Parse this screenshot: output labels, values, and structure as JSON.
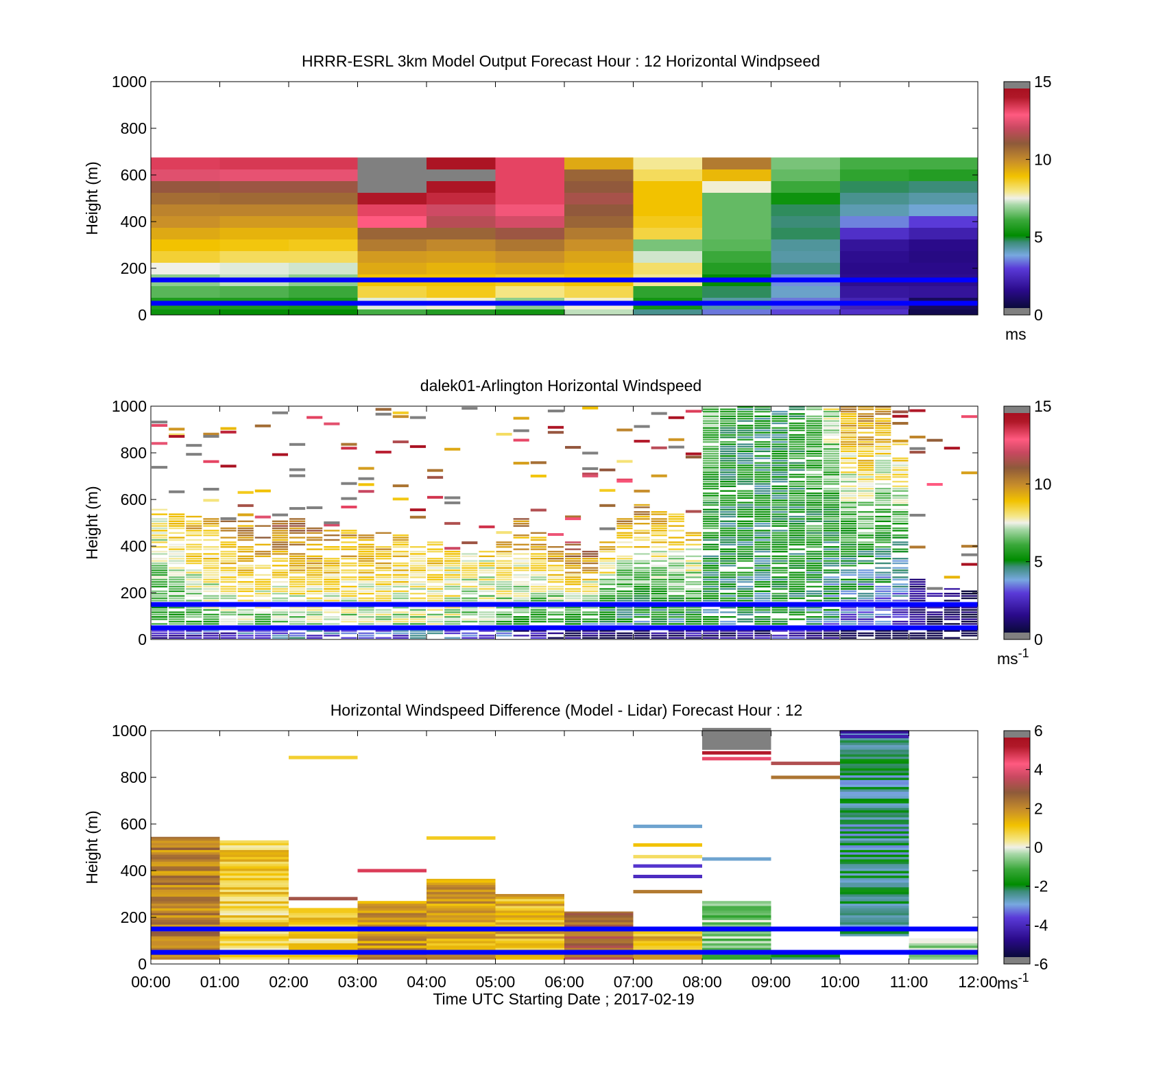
{
  "figure": {
    "xlabel": "Time UTC  Starting Date ; 2017-02-19"
  },
  "chart_data": [
    {
      "type": "heatmap",
      "title": "HRRR-ESRL 3km Model Output   Forecast Hour : 12 Horizontal Windpseed",
      "ylabel": "Height (m)",
      "ylim": [
        0,
        1000
      ],
      "xlim": [
        0,
        12
      ],
      "yticks": [
        0,
        200,
        400,
        600,
        800,
        1000
      ],
      "xticks": [
        0,
        1,
        2,
        3,
        4,
        5,
        6,
        7,
        8,
        9,
        10,
        11,
        12
      ],
      "colorbar": {
        "ticks": [
          0,
          5,
          10,
          15
        ],
        "clim": [
          0,
          15
        ],
        "unit_text": "ms",
        "unit_sup": ""
      },
      "reference_lines_m": [
        150,
        50
      ],
      "cell_height_m": 50,
      "columns": [
        {
          "x": 0,
          "values": [
            5.2,
            5.5,
            6.3,
            6.8,
            7.5,
            8.6,
            9.0,
            9.5,
            10.0,
            10.3,
            10.8,
            11.4,
            12.7,
            13.7
          ]
        },
        {
          "x": 1,
          "values": [
            5.0,
            5.5,
            6.2,
            7.2,
            7.4,
            8.3,
            8.9,
            9.3,
            9.8,
            10.3,
            10.9,
            11.5,
            12.8,
            13.8
          ]
        },
        {
          "x": 2,
          "values": [
            5.0,
            5.4,
            6.0,
            6.8,
            7.3,
            8.3,
            8.8,
            9.3,
            9.8,
            10.3,
            10.9,
            11.5,
            12.8,
            13.8
          ]
        },
        {
          "x": 3,
          "values": [
            6.1,
            7.4,
            8.5,
            9.0,
            9.5,
            9.8,
            10.5,
            11.0,
            13.2,
            13.6,
            14.5,
            15.1,
            15.1,
            15.1
          ]
        },
        {
          "x": 4,
          "values": [
            5.6,
            7.6,
            8.8,
            9.0,
            9.3,
            9.7,
            10.2,
            11.0,
            12.0,
            12.4,
            14.1,
            14.6,
            15.1,
            14.7
          ]
        },
        {
          "x": 5,
          "values": [
            5.3,
            6.8,
            8.0,
            8.8,
            9.5,
            10.0,
            10.6,
            11.5,
            12.5,
            13.0,
            13.6,
            13.6,
            13.6,
            13.6
          ]
        },
        {
          "x": 6,
          "values": [
            7.2,
            7.6,
            8.4,
            9.0,
            9.3,
            9.6,
            10.0,
            10.5,
            11.0,
            11.3,
            11.7,
            11.3,
            11.0,
            9.5
          ]
        },
        {
          "x": 7,
          "values": [
            4.3,
            5.3,
            5.8,
            7.9,
            8.2,
            7.3,
            6.6,
            8.5,
            8.8,
            9.0,
            9.0,
            9.0,
            8.3,
            7.9
          ]
        },
        {
          "x": 8,
          "values": [
            3.2,
            4.1,
            4.6,
            5.0,
            5.6,
            6.0,
            6.3,
            6.4,
            6.4,
            6.4,
            6.4,
            7.6,
            9.2,
            10.5
          ]
        },
        {
          "x": 9,
          "values": [
            2.8,
            3.2,
            3.8,
            3.4,
            4.4,
            4.1,
            4.2,
            4.6,
            4.5,
            4.6,
            5.2,
            6.0,
            6.4,
            6.6
          ]
        },
        {
          "x": 10,
          "values": [
            2.4,
            2.0,
            1.6,
            1.3,
            1.2,
            1.3,
            1.5,
            2.4,
            3.3,
            4.0,
            4.3,
            4.6,
            5.8,
            6.1
          ]
        },
        {
          "x": 11,
          "values": [
            0.3,
            0.5,
            1.5,
            1.3,
            1.2,
            1.1,
            1.2,
            1.9,
            2.7,
            3.7,
            4.1,
            4.5,
            5.6,
            6.1
          ]
        }
      ]
    },
    {
      "type": "heatmap",
      "title": "dalek01-Arlington  Horizontal Windspeed",
      "ylabel": "Height (m)",
      "ylim": [
        0,
        1000
      ],
      "xlim": [
        0,
        12
      ],
      "yticks": [
        0,
        200,
        400,
        600,
        800,
        1000
      ],
      "xticks": [
        0,
        1,
        2,
        3,
        4,
        5,
        6,
        7,
        8,
        9,
        10,
        11,
        12
      ],
      "colorbar": {
        "ticks": [
          0,
          5,
          10,
          15
        ],
        "clim": [
          0,
          15
        ],
        "unit_text": "ms",
        "unit_sup": "-1"
      },
      "reference_lines_m": [
        150,
        50
      ],
      "regions": [
        {
          "x0": 0.0,
          "x1": 0.25,
          "top": 560,
          "base": 5.0,
          "upper": 8.5
        },
        {
          "x0": 0.25,
          "x1": 0.5,
          "top": 540,
          "base": 5.2,
          "upper": 9.0
        },
        {
          "x0": 0.5,
          "x1": 0.75,
          "top": 530,
          "base": 5.5,
          "upper": 9.5
        },
        {
          "x0": 0.75,
          "x1": 1.0,
          "top": 520,
          "base": 6.0,
          "upper": 9.5
        },
        {
          "x0": 1.0,
          "x1": 1.25,
          "top": 510,
          "base": 6.0,
          "upper": 10.0
        },
        {
          "x0": 1.25,
          "x1": 1.5,
          "top": 520,
          "base": 6.2,
          "upper": 10.5
        },
        {
          "x0": 1.5,
          "x1": 1.75,
          "top": 500,
          "base": 6.0,
          "upper": 11.0
        },
        {
          "x0": 1.75,
          "x1": 2.0,
          "top": 510,
          "base": 6.0,
          "upper": 11.0
        },
        {
          "x0": 2.0,
          "x1": 2.25,
          "top": 520,
          "base": 6.2,
          "upper": 11.0
        },
        {
          "x0": 2.25,
          "x1": 2.5,
          "top": 500,
          "base": 6.0,
          "upper": 11.0
        },
        {
          "x0": 2.5,
          "x1": 2.75,
          "top": 480,
          "base": 6.2,
          "upper": 10.5
        },
        {
          "x0": 2.75,
          "x1": 3.0,
          "top": 480,
          "base": 6.3,
          "upper": 10.0
        },
        {
          "x0": 3.0,
          "x1": 3.25,
          "top": 500,
          "base": 6.5,
          "upper": 10.0
        },
        {
          "x0": 3.25,
          "x1": 3.5,
          "top": 460,
          "base": 6.6,
          "upper": 10.0
        },
        {
          "x0": 3.5,
          "x1": 3.75,
          "top": 450,
          "base": 6.6,
          "upper": 9.5
        },
        {
          "x0": 3.75,
          "x1": 4.0,
          "top": 400,
          "base": 6.7,
          "upper": 9.0
        },
        {
          "x0": 4.0,
          "x1": 4.25,
          "top": 420,
          "base": 6.8,
          "upper": 9.0
        },
        {
          "x0": 4.25,
          "x1": 4.5,
          "top": 380,
          "base": 6.9,
          "upper": 8.5
        },
        {
          "x0": 4.5,
          "x1": 4.75,
          "top": 380,
          "base": 6.6,
          "upper": 8.0
        },
        {
          "x0": 4.75,
          "x1": 5.0,
          "top": 390,
          "base": 6.0,
          "upper": 8.5
        },
        {
          "x0": 5.0,
          "x1": 5.25,
          "top": 420,
          "base": 5.5,
          "upper": 9.5
        },
        {
          "x0": 5.25,
          "x1": 5.5,
          "top": 520,
          "base": 5.0,
          "upper": 10.5
        },
        {
          "x0": 5.5,
          "x1": 5.75,
          "top": 460,
          "base": 4.5,
          "upper": 10.0
        },
        {
          "x0": 5.75,
          "x1": 6.0,
          "top": 400,
          "base": 4.0,
          "upper": 10.5
        },
        {
          "x0": 6.0,
          "x1": 6.25,
          "top": 420,
          "base": 3.5,
          "upper": 12.0
        },
        {
          "x0": 6.25,
          "x1": 6.5,
          "top": 380,
          "base": 3.2,
          "upper": 11.0
        },
        {
          "x0": 6.5,
          "x1": 6.75,
          "top": 420,
          "base": 3.2,
          "upper": 10.0
        },
        {
          "x0": 6.75,
          "x1": 7.0,
          "top": 520,
          "base": 3.2,
          "upper": 10.0
        },
        {
          "x0": 7.0,
          "x1": 7.25,
          "top": 580,
          "base": 3.5,
          "upper": 10.5
        },
        {
          "x0": 7.25,
          "x1": 7.5,
          "top": 560,
          "base": 3.8,
          "upper": 10.0
        },
        {
          "x0": 7.5,
          "x1": 7.75,
          "top": 540,
          "base": 4.0,
          "upper": 9.5
        },
        {
          "x0": 7.75,
          "x1": 8.0,
          "top": 460,
          "base": 4.0,
          "upper": 9.0
        },
        {
          "x0": 8.0,
          "x1": 8.25,
          "top": 1000,
          "base": 4.5,
          "upper": 6.5
        },
        {
          "x0": 8.25,
          "x1": 8.5,
          "top": 1000,
          "base": 4.5,
          "upper": 5.5
        },
        {
          "x0": 8.5,
          "x1": 8.75,
          "top": 1000,
          "base": 4.8,
          "upper": 5.2
        },
        {
          "x0": 8.75,
          "x1": 9.0,
          "top": 1000,
          "base": 4.6,
          "upper": 5.0
        },
        {
          "x0": 9.0,
          "x1": 9.25,
          "top": 980,
          "base": 5.5,
          "upper": 5.0
        },
        {
          "x0": 9.25,
          "x1": 9.5,
          "top": 1000,
          "base": 5.0,
          "upper": 5.5
        },
        {
          "x0": 9.5,
          "x1": 9.75,
          "top": 1000,
          "base": 4.5,
          "upper": 6.5
        },
        {
          "x0": 9.75,
          "x1": 10.0,
          "top": 1000,
          "base": 3.5,
          "upper": 7.5
        },
        {
          "x0": 10.0,
          "x1": 10.25,
          "top": 1000,
          "base": 2.5,
          "upper": 10.0
        },
        {
          "x0": 10.25,
          "x1": 10.5,
          "top": 1000,
          "base": 2.2,
          "upper": 10.5
        },
        {
          "x0": 10.5,
          "x1": 10.75,
          "top": 1000,
          "base": 2.0,
          "upper": 10.0
        },
        {
          "x0": 10.75,
          "x1": 11.0,
          "top": 840,
          "base": 1.8,
          "upper": 9.0
        },
        {
          "x0": 11.0,
          "x1": 11.25,
          "top": 260,
          "base": 1.2,
          "upper": 1.4
        },
        {
          "x0": 11.25,
          "x1": 11.5,
          "top": 200,
          "base": 0.8,
          "upper": 1.0
        },
        {
          "x0": 11.5,
          "x1": 11.75,
          "top": 230,
          "base": 0.6,
          "upper": 0.8
        },
        {
          "x0": 11.75,
          "x1": 12.0,
          "top": 210,
          "base": 0.5,
          "upper": 0.6
        }
      ]
    },
    {
      "type": "heatmap",
      "title": "Horizontal Windspeed Difference (Model - Lidar) Forecast Hour : 12",
      "ylabel": "Height (m)",
      "xlabel": "Time UTC  Starting Date ; 2017-02-19",
      "ylim": [
        0,
        1000
      ],
      "xlim": [
        0,
        12
      ],
      "yticks": [
        0,
        200,
        400,
        600,
        800,
        1000
      ],
      "xticks": [
        0,
        1,
        2,
        3,
        4,
        5,
        6,
        7,
        8,
        9,
        10,
        11,
        12
      ],
      "xticklabels": [
        "00:00",
        "01:00",
        "02:00",
        "03:00",
        "04:00",
        "05:00",
        "06:00",
        "07:00",
        "08:00",
        "09:00",
        "10:00",
        "11:00",
        "12:00"
      ],
      "colorbar": {
        "ticks": [
          -6,
          -4,
          -2,
          0,
          2,
          4,
          6
        ],
        "clim": [
          -6,
          6
        ],
        "unit_text": "ms",
        "unit_sup": "-1"
      },
      "reference_lines_m": [
        150,
        50
      ],
      "blocks": [
        {
          "x0": 0,
          "x1": 1,
          "y0": 20,
          "y1": 545,
          "value": 2.3
        },
        {
          "x0": 1,
          "x1": 2,
          "y0": 20,
          "y1": 530,
          "value": 0.9
        },
        {
          "x0": 2,
          "x1": 3,
          "y0": 20,
          "y1": 240,
          "value": 0.8
        },
        {
          "x0": 3,
          "x1": 4,
          "y0": 20,
          "y1": 270,
          "value": 2.0
        },
        {
          "x0": 4,
          "x1": 5,
          "y0": 20,
          "y1": 365,
          "value": 1.7
        },
        {
          "x0": 5,
          "x1": 6,
          "y0": 20,
          "y1": 300,
          "value": 1.4
        },
        {
          "x0": 6,
          "x1": 7,
          "y0": 20,
          "y1": 225,
          "value": 2.8
        },
        {
          "x0": 7,
          "x1": 8,
          "y0": 20,
          "y1": 160,
          "value": 1.4
        },
        {
          "x0": 8,
          "x1": 9,
          "y0": 20,
          "y1": 270,
          "value": -0.7
        },
        {
          "x0": 9,
          "x1": 10,
          "y0": 20,
          "y1": 40,
          "value": -2.5
        },
        {
          "x0": 10,
          "x1": 11,
          "y0": 120,
          "y1": 990,
          "value": -2.6
        },
        {
          "x0": 11,
          "x1": 12,
          "y0": 20,
          "y1": 110,
          "value": -0.6
        }
      ],
      "streaks": [
        {
          "x0": 2,
          "x1": 3,
          "y": 885,
          "value": 0.9
        },
        {
          "x0": 2,
          "x1": 3,
          "y": 280,
          "value": 3.3
        },
        {
          "x0": 3,
          "x1": 4,
          "y": 400,
          "value": 5.0
        },
        {
          "x0": 4,
          "x1": 5,
          "y": 540,
          "value": 1.0
        },
        {
          "x0": 7,
          "x1": 8,
          "y": 590,
          "value": -3.0
        },
        {
          "x0": 7,
          "x1": 8,
          "y": 510,
          "value": 1.2
        },
        {
          "x0": 7,
          "x1": 8,
          "y": 460,
          "value": 0.6
        },
        {
          "x0": 7,
          "x1": 8,
          "y": 420,
          "value": -4.0
        },
        {
          "x0": 7,
          "x1": 8,
          "y": 375,
          "value": -4.2
        },
        {
          "x0": 7,
          "x1": 8,
          "y": 310,
          "value": 2.4
        },
        {
          "x0": 8,
          "x1": 9,
          "y": 450,
          "value": -3.0
        },
        {
          "x0": 8,
          "x1": 9,
          "y": 965,
          "value": 6.0
        },
        {
          "x0": 8,
          "x1": 9,
          "y": 905,
          "value": 5.5
        },
        {
          "x0": 8,
          "x1": 9,
          "y": 880,
          "value": 4.8
        },
        {
          "x0": 9,
          "x1": 10,
          "y": 860,
          "value": 3.5
        },
        {
          "x0": 9,
          "x1": 10,
          "y": 800,
          "value": 2.5
        },
        {
          "x0": 10,
          "x1": 11,
          "y": 995,
          "value": -4.8
        },
        {
          "x0": 10,
          "x1": 11,
          "y": 975,
          "value": -4.5
        }
      ]
    }
  ]
}
